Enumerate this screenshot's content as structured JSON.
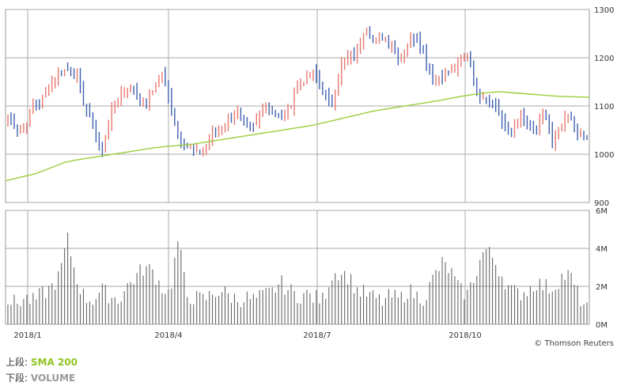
{
  "credit": "© Thomson Reuters",
  "legend": [
    {
      "prefix": "上段:",
      "name": "SMA 200",
      "color": "#8fc31f"
    },
    {
      "prefix": "下段:",
      "name": "VOLUME",
      "color": "#999999"
    }
  ],
  "colors": {
    "up": "#e8776f",
    "down": "#3f5fb0",
    "sma": "#9ccd3a",
    "volume": "#666666",
    "grid": "#aaaaaa"
  },
  "chart_data": [
    {
      "type": "candlestick",
      "ylim": [
        900,
        1300
      ],
      "yticks": [
        "1300",
        "1200",
        "1100",
        "1000",
        "900"
      ],
      "xticks": [
        "2018/1",
        "2018/4",
        "2018/7",
        "2018/10"
      ],
      "close_anchors": [
        1075,
        1055,
        1060,
        1105,
        1110,
        1150,
        1170,
        1175,
        1170,
        1100,
        1060,
        1000,
        1080,
        1120,
        1140,
        1130,
        1100,
        1130,
        1170,
        1110,
        1040,
        1020,
        1000,
        1010,
        1040,
        1050,
        1080,
        1090,
        1050,
        1060,
        1100,
        1090,
        1070,
        1090,
        1150,
        1155,
        1170,
        1130,
        1100,
        1180,
        1200,
        1210,
        1270,
        1230,
        1245,
        1230,
        1200,
        1230,
        1245,
        1200,
        1160,
        1160,
        1170,
        1190,
        1210,
        1130,
        1120,
        1110,
        1070,
        1040,
        1080,
        1060,
        1040,
        1090,
        1020,
        1060,
        1080,
        1040,
        1030
      ],
      "sma200_anchors": [
        945,
        960,
        985,
        995,
        1005,
        1015,
        1020,
        1030,
        1040,
        1050,
        1060,
        1075,
        1090,
        1100,
        1110,
        1122,
        1130,
        1125,
        1120,
        1118
      ],
      "volume_ylim": [
        0,
        6
      ],
      "volume_yticks": [
        "6M",
        "4M",
        "2M",
        "0M"
      ],
      "volume_unit": "M",
      "volume_anchors": [
        1.3,
        1.1,
        1.4,
        1.2,
        1.6,
        1.9,
        2.5,
        4.5,
        2.5,
        1.4,
        1.3,
        1.8,
        1.5,
        1.3,
        2.0,
        2.5,
        3.0,
        2.8,
        2.0,
        1.6,
        4.5,
        1.5,
        1.4,
        1.3,
        1.6,
        1.8,
        1.5,
        1.3,
        1.4,
        1.3,
        1.5,
        1.7,
        2.2,
        1.8,
        1.5,
        1.6,
        1.4,
        1.3,
        2.6,
        2.8,
        2.5,
        1.8,
        1.6,
        1.4,
        1.2,
        1.5,
        1.3,
        1.8,
        1.5,
        1.4,
        2.5,
        3.2,
        2.8,
        1.8,
        1.6,
        2.8,
        4.0,
        3.5,
        2.6,
        1.8,
        1.6,
        1.8,
        2.2,
        2.0,
        1.9,
        2.5,
        2.6,
        1.5,
        0.8
      ]
    }
  ]
}
